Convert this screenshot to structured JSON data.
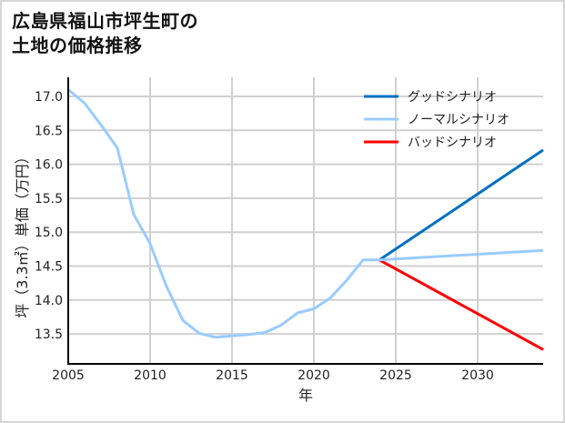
{
  "title": {
    "line1": "広島県福山市坪生町の",
    "line2": "土地の価格推移"
  },
  "colors": {
    "good": "#0070c0",
    "normal": "#99ccff",
    "bad": "#ff0000",
    "grid": "#d0d0d0",
    "axis": "#000000",
    "frame": "#d6d6d6"
  },
  "chart_data": {
    "type": "line",
    "title": "広島県福山市坪生町の土地の価格推移",
    "xlabel": "年",
    "ylabel": "坪（3.3㎡）単価（万円）",
    "xlim": [
      2005,
      2034
    ],
    "ylim": [
      13.1,
      17.2
    ],
    "grid": true,
    "legend_position": "upper right",
    "x_ticks": [
      "2005",
      "2010",
      "2015",
      "2020",
      "2025",
      "2030"
    ],
    "y_ticks": [
      "13.5",
      "14.0",
      "14.5",
      "15.0",
      "15.5",
      "16.0",
      "16.5",
      "17.0"
    ],
    "series": [
      {
        "name": "グッドシナリオ",
        "color": "#0070c0",
        "x": [
          2024,
          2034
        ],
        "values": [
          14.59,
          16.21
        ]
      },
      {
        "name": "ノーマルシナリオ",
        "color": "#99ccff",
        "x": [
          2005,
          2006,
          2007,
          2008,
          2009,
          2010,
          2011,
          2012,
          2013,
          2014,
          2015,
          2016,
          2017,
          2018,
          2019,
          2020,
          2021,
          2022,
          2023,
          2024,
          2034
        ],
        "values": [
          17.1,
          16.9,
          16.58,
          16.24,
          15.26,
          14.83,
          14.2,
          13.7,
          13.51,
          13.45,
          13.47,
          13.49,
          13.52,
          13.63,
          13.81,
          13.87,
          14.03,
          14.29,
          14.59,
          14.59,
          14.73
        ]
      },
      {
        "name": "バッドシナリオ",
        "color": "#ff0000",
        "x": [
          2024,
          2034
        ],
        "values": [
          14.59,
          13.27
        ]
      }
    ]
  },
  "legend": {
    "items": [
      {
        "label": "グッドシナリオ"
      },
      {
        "label": "ノーマルシナリオ"
      },
      {
        "label": "バッドシナリオ"
      }
    ]
  }
}
